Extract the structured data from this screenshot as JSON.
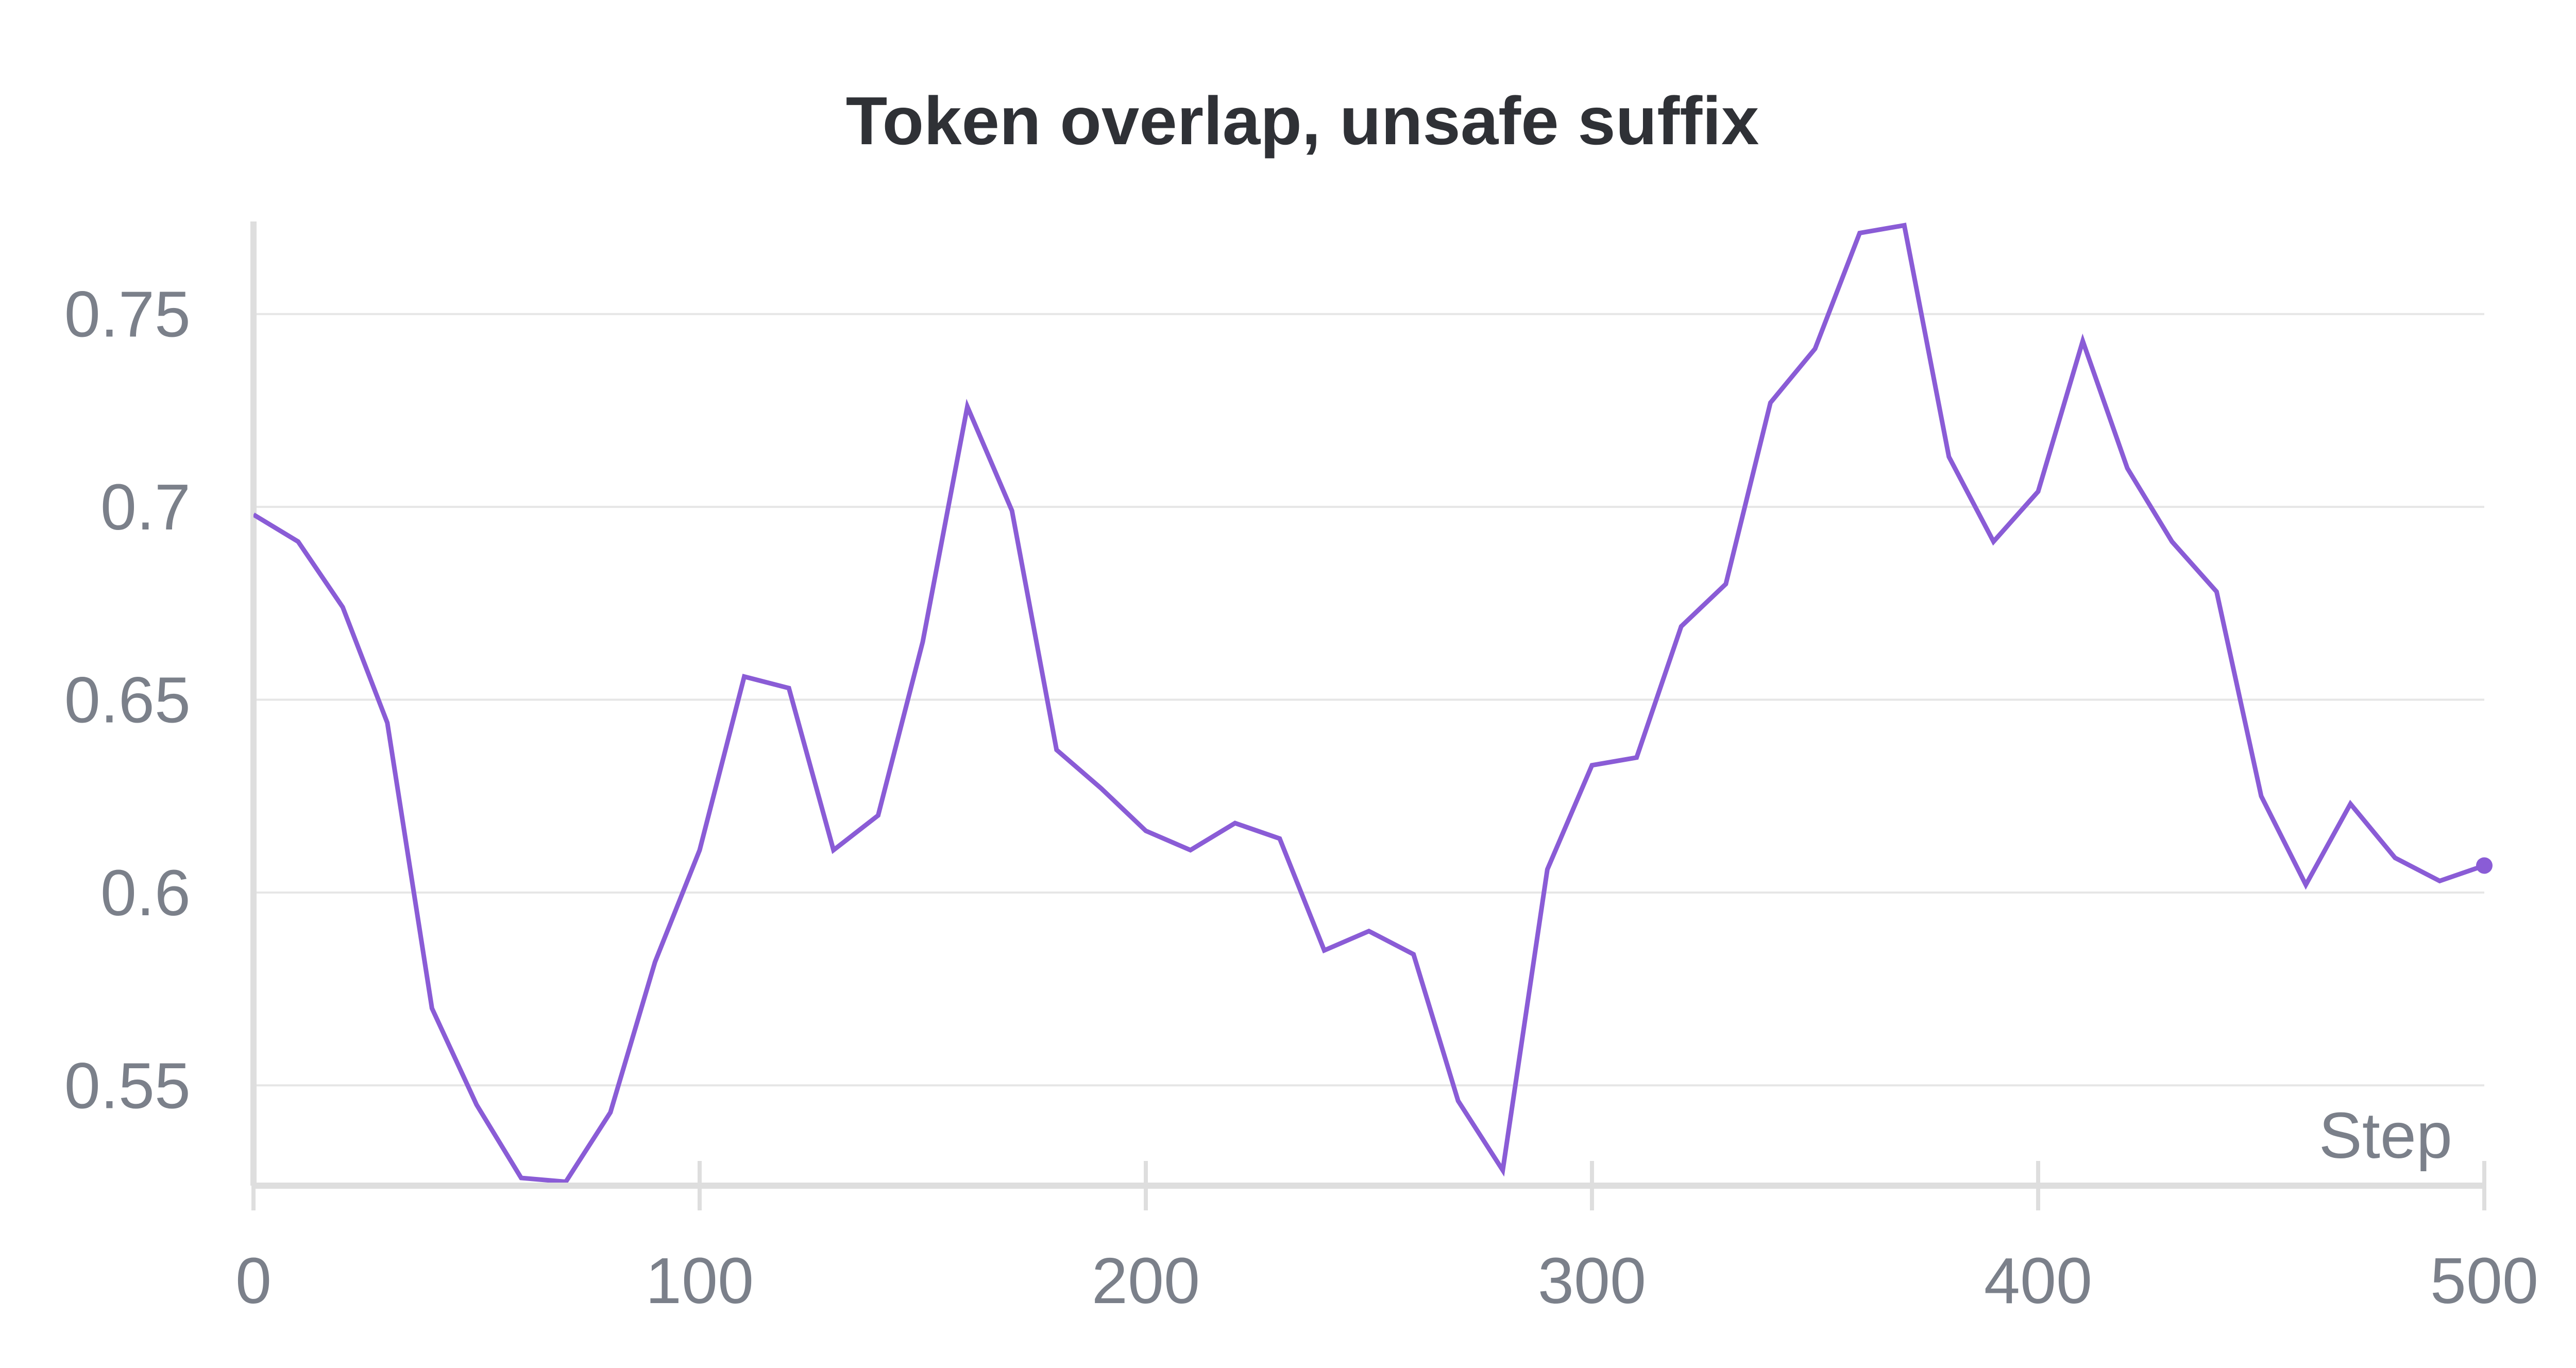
{
  "colors": {
    "series": "#8a5cd6",
    "grid": "#e6e6e6",
    "axis": "#dedede",
    "tick_text": "#7b808a",
    "title_text": "#2f3136"
  },
  "chart_data": {
    "type": "line",
    "title": "Token overlap, unsafe suffix",
    "xlabel": "Step",
    "ylabel": "",
    "xlim": [
      0,
      500
    ],
    "ylim": [
      0.524,
      0.774
    ],
    "xticks": [
      0,
      100,
      200,
      300,
      400,
      500
    ],
    "yticks": [
      0.55,
      0.6,
      0.65,
      0.7,
      0.75
    ],
    "x_tick_labels": [
      "0",
      "100",
      "200",
      "300",
      "400",
      "500"
    ],
    "y_tick_labels": [
      "0.55",
      "0.6",
      "0.65",
      "0.7",
      "0.75"
    ],
    "grid": "horizontal",
    "legend": "none",
    "series": [
      {
        "x": [
          0,
          10,
          20,
          30,
          40,
          50,
          60,
          70,
          80,
          90,
          100,
          110,
          120,
          130,
          140,
          150,
          160,
          170,
          180,
          190,
          200,
          210,
          220,
          230,
          240,
          250,
          260,
          270,
          280,
          290,
          300,
          310,
          320,
          330,
          340,
          350,
          360,
          370,
          380,
          390,
          400,
          410,
          420,
          430,
          440,
          450,
          460,
          470,
          480,
          490,
          500
        ],
        "y": [
          0.698,
          0.691,
          0.674,
          0.644,
          0.57,
          0.545,
          0.526,
          0.525,
          0.543,
          0.582,
          0.611,
          0.656,
          0.653,
          0.611,
          0.62,
          0.665,
          0.726,
          0.699,
          0.637,
          0.627,
          0.616,
          0.611,
          0.618,
          0.614,
          0.585,
          0.59,
          0.584,
          0.546,
          0.528,
          0.606,
          0.633,
          0.635,
          0.669,
          0.68,
          0.727,
          0.741,
          0.771,
          0.773,
          0.713,
          0.691,
          0.704,
          0.743,
          0.71,
          0.691,
          0.678,
          0.625,
          0.602,
          0.623,
          0.609,
          0.603,
          0.607
        ]
      }
    ]
  }
}
